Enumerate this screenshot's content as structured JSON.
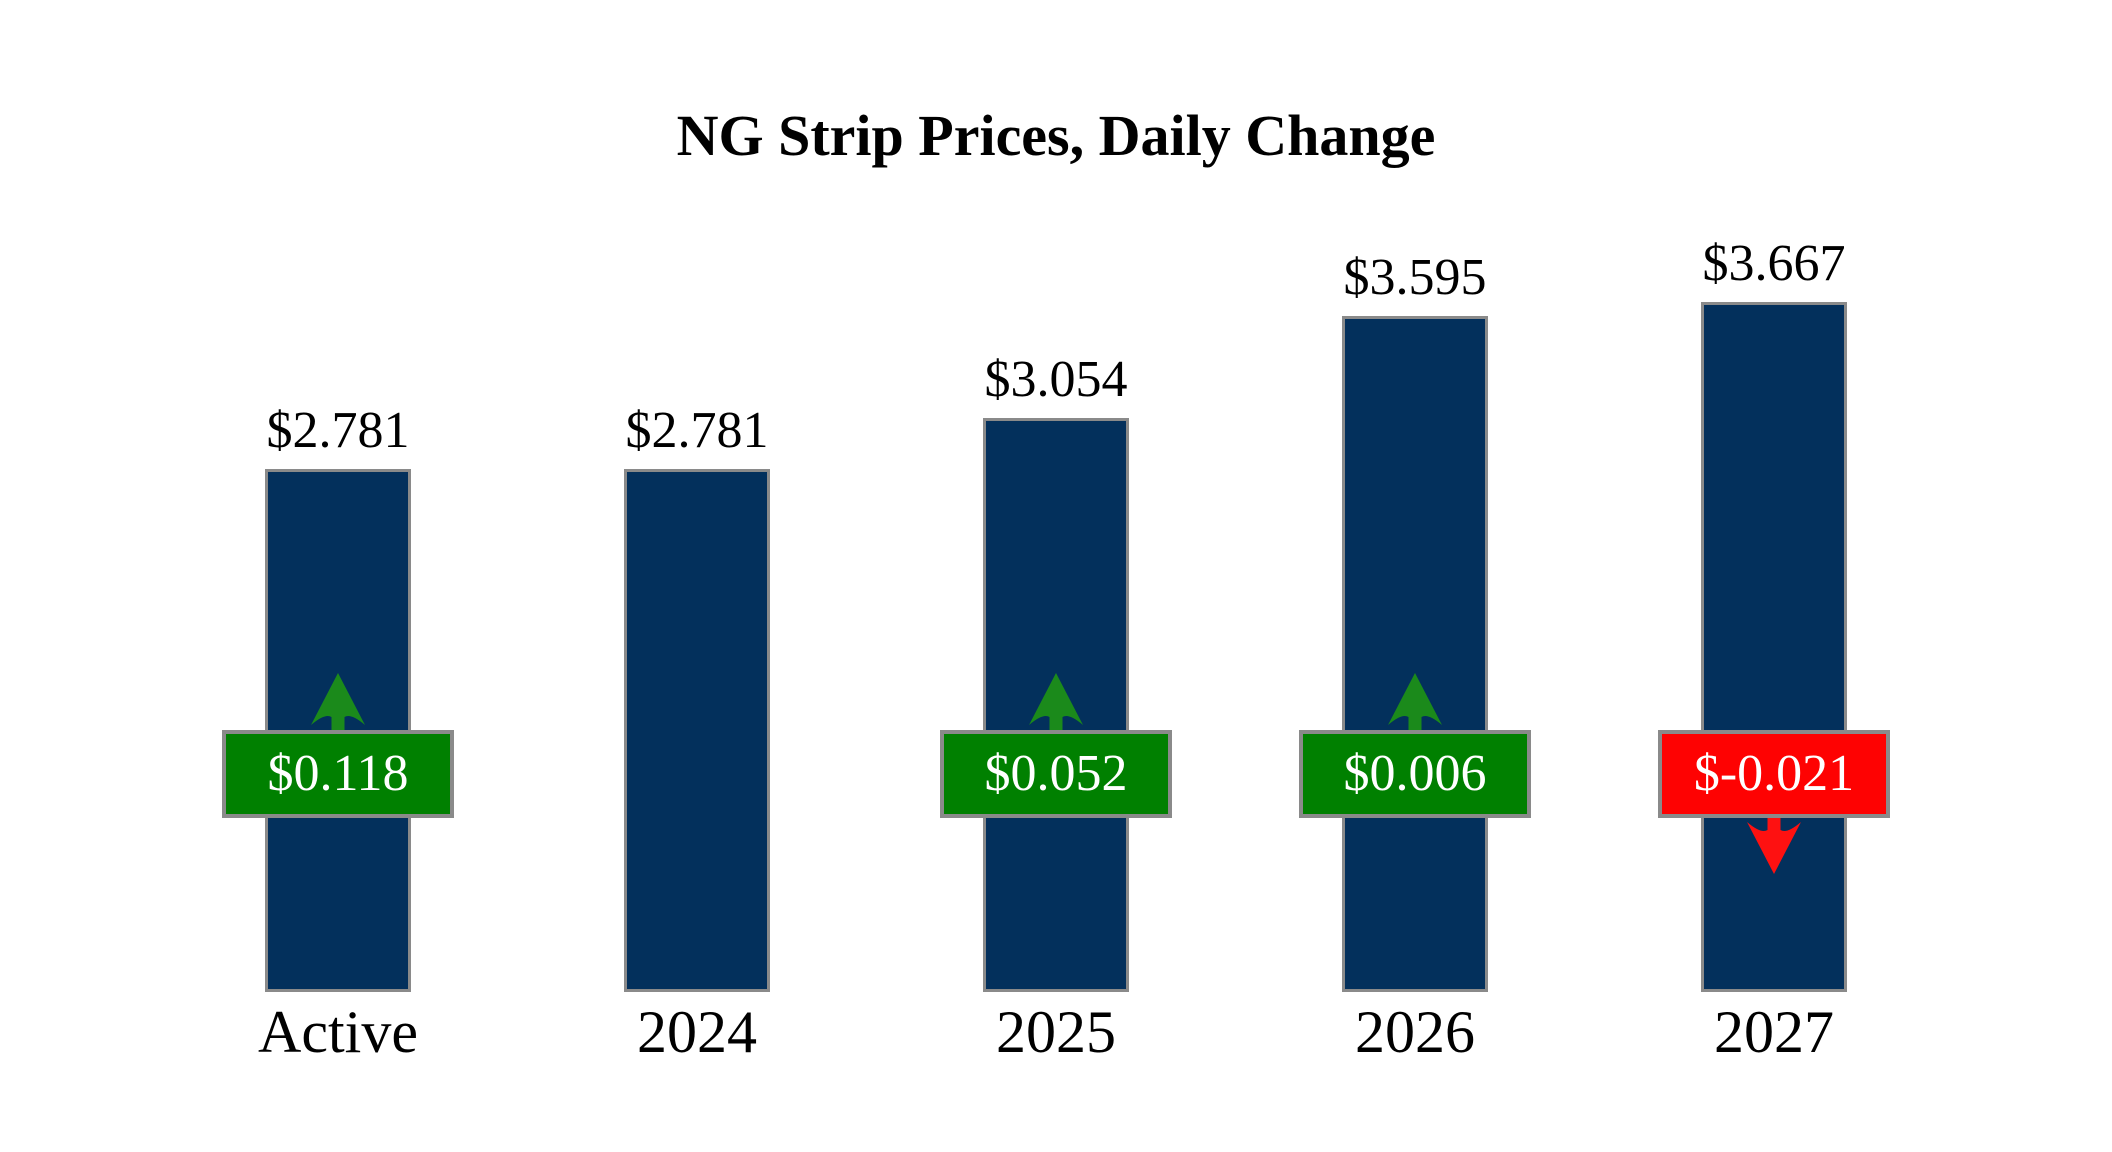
{
  "title": "NG Strip Prices, Daily Change",
  "chart_data": {
    "type": "bar",
    "title": "NG Strip Prices, Daily Change",
    "categories": [
      "Active",
      "2024",
      "2025",
      "2026",
      "2027"
    ],
    "series": [
      {
        "name": "strip_price",
        "values": [
          2.781,
          2.781,
          3.054,
          3.595,
          3.667
        ]
      },
      {
        "name": "daily_change",
        "values": [
          0.118,
          null,
          0.052,
          0.006,
          -0.021
        ]
      }
    ],
    "value_labels": [
      "$2.781",
      "$2.781",
      "$3.054",
      "$3.595",
      "$3.667"
    ],
    "change_labels": [
      "$0.118",
      null,
      "$0.052",
      "$0.006",
      "$-0.021"
    ],
    "change_directions": [
      "up",
      null,
      "up",
      "up",
      "down"
    ],
    "ylim": [
      0,
      3.667
    ],
    "grid": false,
    "legend": "none"
  },
  "colors": {
    "background": "#ffffff",
    "bar_fill": "#03305c",
    "bar_border": "#8a8a8a",
    "badge_border": "#8a8a8a",
    "badge_up_fill": "#008000",
    "badge_down_fill": "#fe0202",
    "badge_text": "#ffffff",
    "arrow_up": "#1b8a1b",
    "arrow_down": "#fe1111",
    "text": "#000000"
  },
  "icons": {
    "up": "arrow-up-icon",
    "down": "arrow-down-icon"
  }
}
